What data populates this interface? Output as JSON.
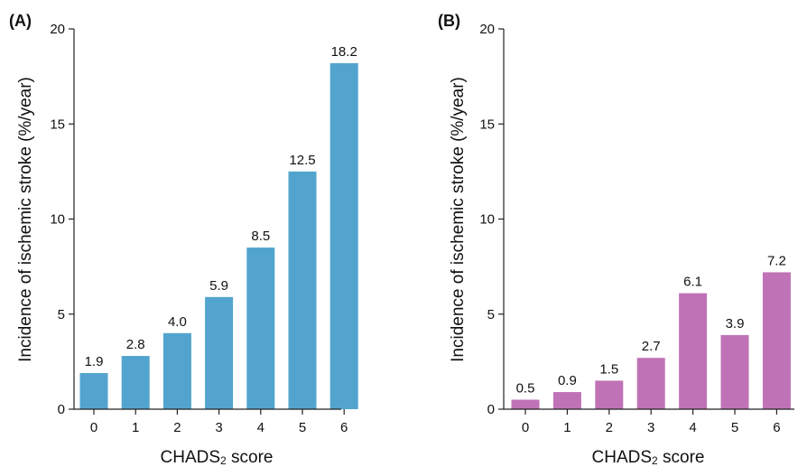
{
  "chart_data": [
    {
      "type": "bar",
      "panel_label": "(A)",
      "categories": [
        "0",
        "1",
        "2",
        "3",
        "4",
        "5",
        "6"
      ],
      "values": [
        1.9,
        2.8,
        4.0,
        5.9,
        8.5,
        12.5,
        18.2
      ],
      "value_labels": [
        "1.9",
        "2.8",
        "4.0",
        "5.9",
        "8.5",
        "12.5",
        "18.2"
      ],
      "ylabel": "Incidence of ischemic stroke (%/year)",
      "xlabel_main": "CHADS",
      "xlabel_sub": "2",
      "xlabel_tail": " score",
      "ylim": [
        0,
        20
      ],
      "yticks": [
        "0",
        "5",
        "10",
        "15",
        "20"
      ],
      "color": "#52a4ce",
      "grid": false
    },
    {
      "type": "bar",
      "panel_label": "(B)",
      "categories": [
        "0",
        "1",
        "2",
        "3",
        "4",
        "5",
        "6"
      ],
      "values": [
        0.5,
        0.9,
        1.5,
        2.7,
        6.1,
        3.9,
        7.2
      ],
      "value_labels": [
        "0.5",
        "0.9",
        "1.5",
        "2.7",
        "6.1",
        "3.9",
        "7.2"
      ],
      "ylabel": "Incidence of ischemic stroke (%/year)",
      "xlabel_main": "CHADS",
      "xlabel_sub": "2",
      "xlabel_tail": " score",
      "ylim": [
        0,
        20
      ],
      "yticks": [
        "0",
        "5",
        "10",
        "15",
        "20"
      ],
      "color": "#bf73b6",
      "grid": false
    }
  ]
}
